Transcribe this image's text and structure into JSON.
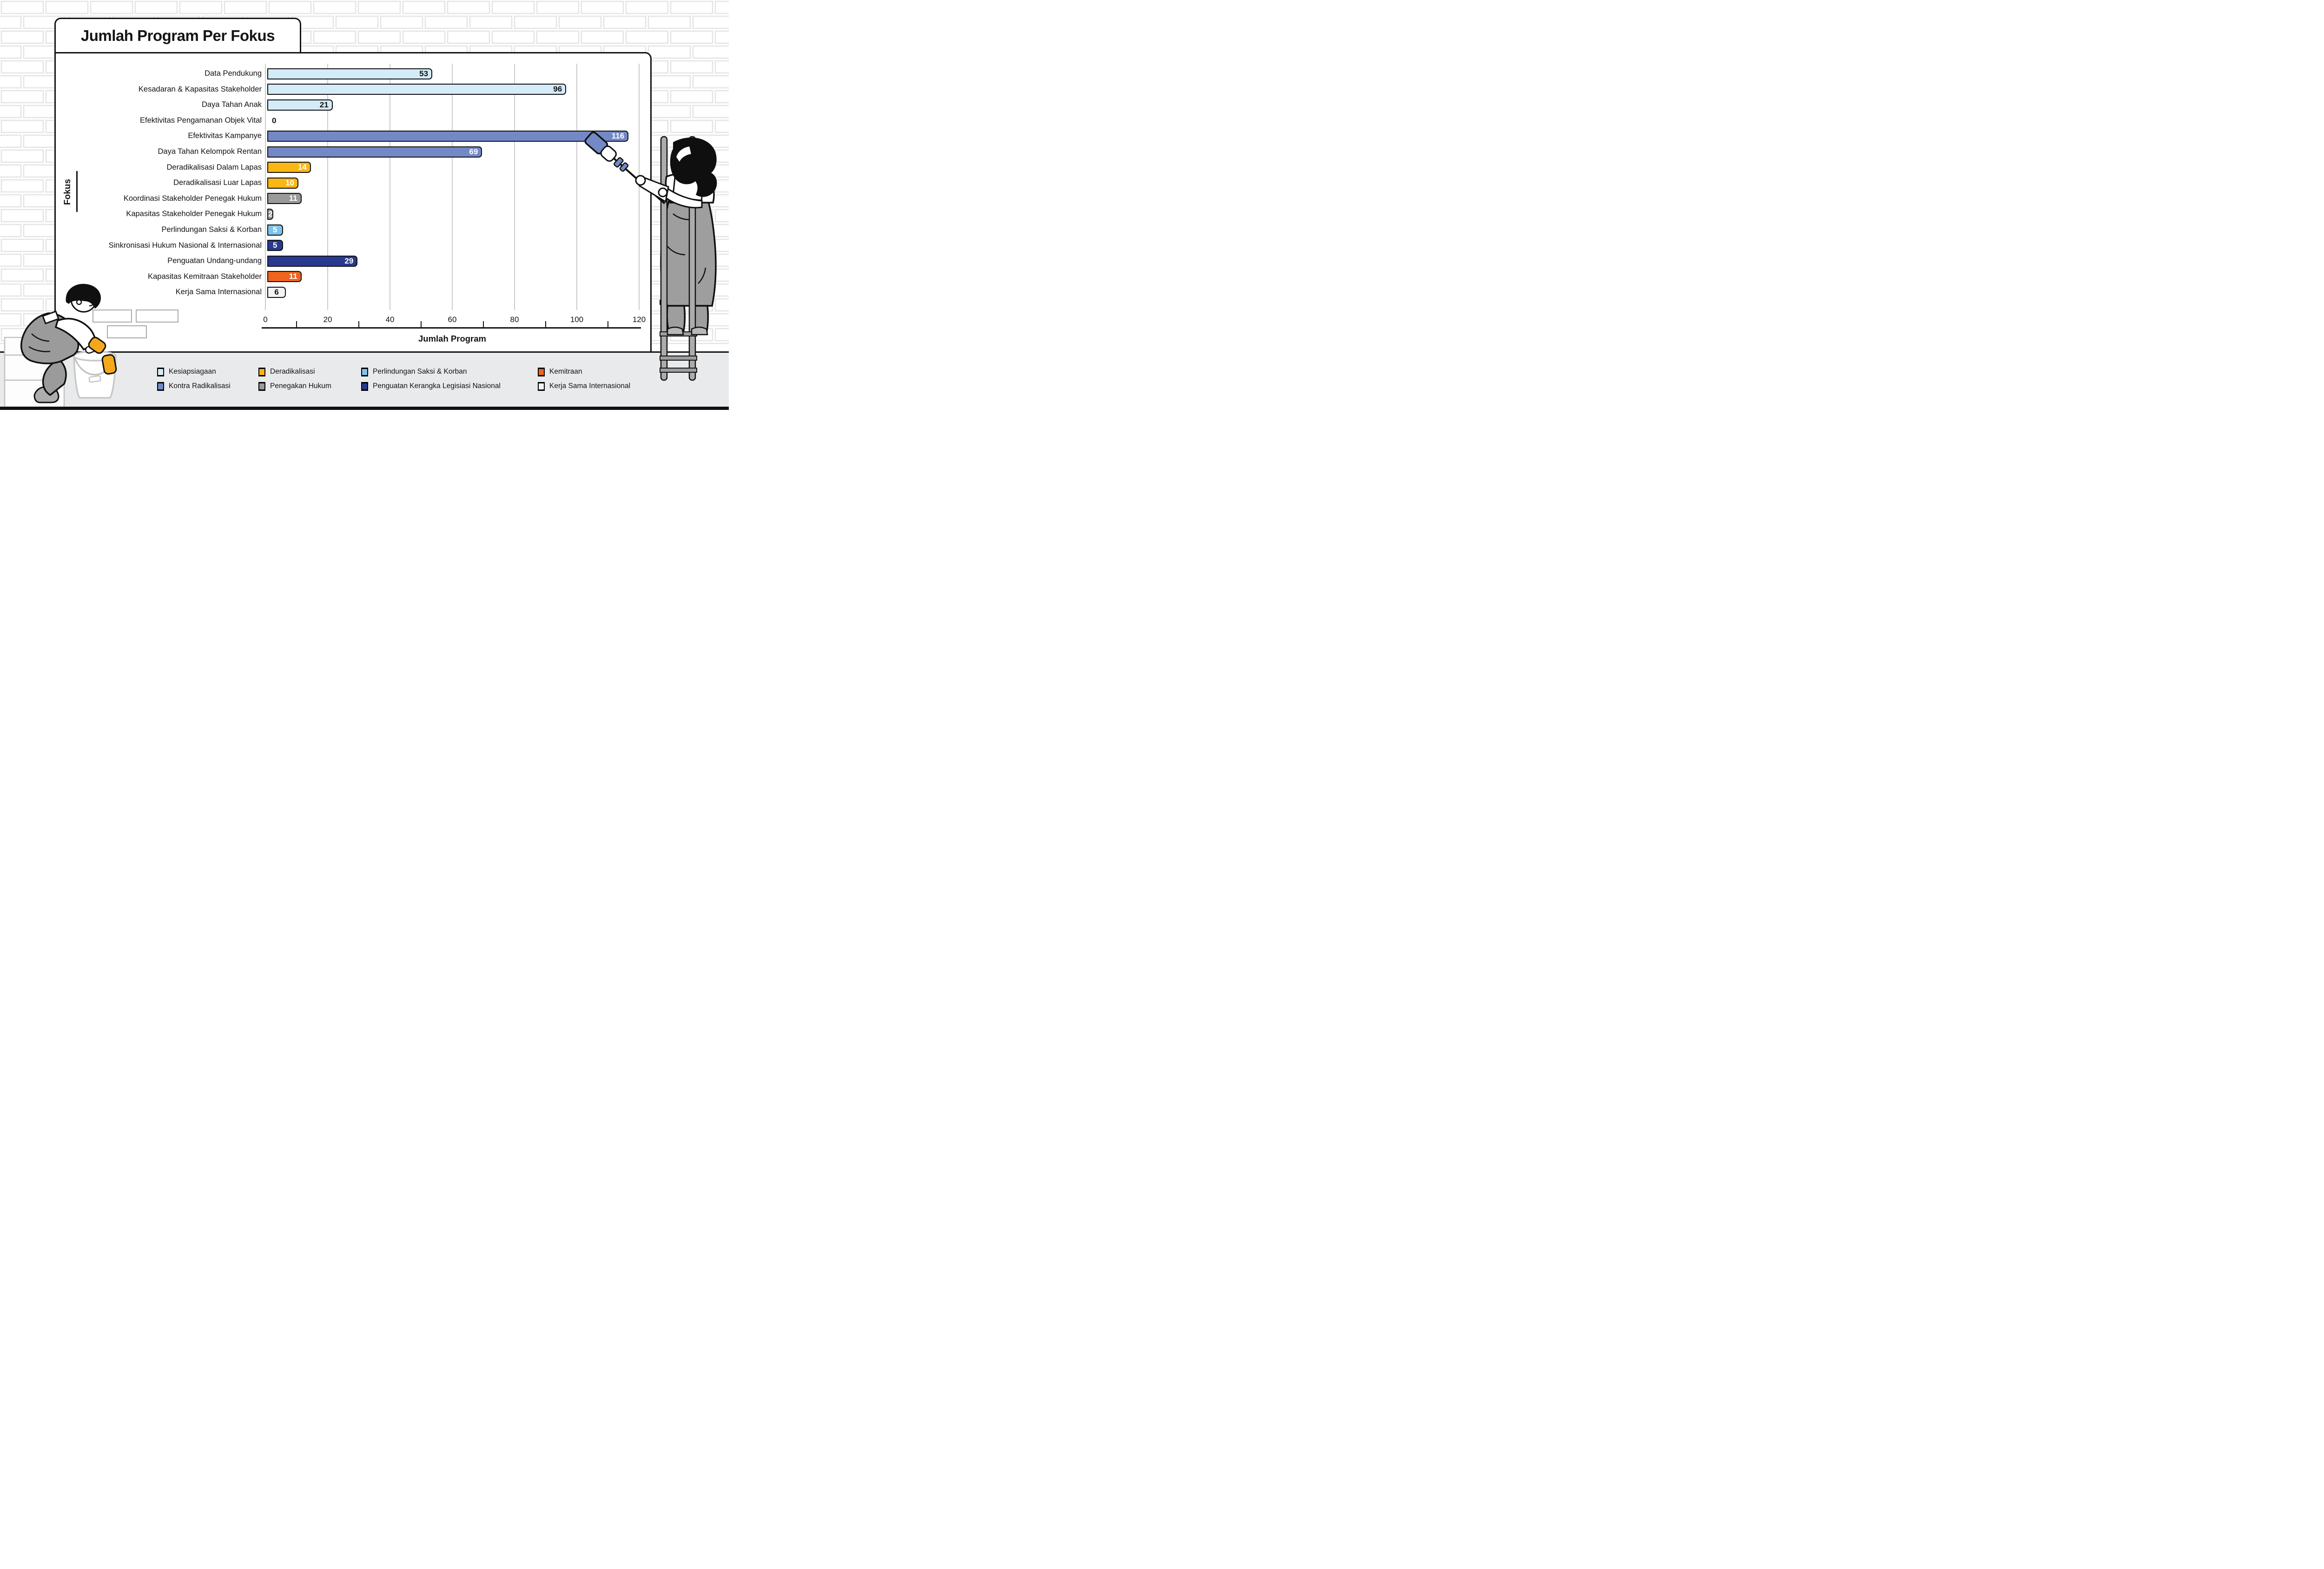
{
  "title": "Jumlah Program Per Fokus",
  "chart_data": {
    "type": "bar",
    "orientation": "horizontal",
    "title": "Jumlah Program Per Fokus",
    "xlabel": "Jumlah Program",
    "ylabel": "Fokus",
    "xlim": [
      0,
      120
    ],
    "xticks": [
      0,
      20,
      40,
      60,
      80,
      100,
      120
    ],
    "minor_xticks": [
      10,
      30,
      50,
      70,
      90,
      110
    ],
    "grid": "vertical gridlines at major ticks",
    "legend_position": "bottom",
    "bars": [
      {
        "label": "Data Pendukung",
        "value": 53,
        "group": "kesiapsiagaan"
      },
      {
        "label": "Kesadaran & Kapasitas Stakeholder",
        "value": 96,
        "group": "kesiapsiagaan"
      },
      {
        "label": "Daya Tahan Anak",
        "value": 21,
        "group": "kesiapsiagaan"
      },
      {
        "label": "Efektivitas Pengamanan Objek Vital",
        "value": 0,
        "group": "kesiapsiagaan"
      },
      {
        "label": "Efektivitas Kampanye",
        "value": 116,
        "group": "kontra_radikalisasi"
      },
      {
        "label": "Daya Tahan Kelompok Rentan",
        "value": 69,
        "group": "kontra_radikalisasi"
      },
      {
        "label": "Deradikalisasi Dalam Lapas",
        "value": 14,
        "group": "deradikalisasi"
      },
      {
        "label": "Deradikalisasi Luar Lapas",
        "value": 10,
        "group": "deradikalisasi"
      },
      {
        "label": "Koordinasi Stakeholder Penegak Hukum",
        "value": 11,
        "group": "penegakan_hukum"
      },
      {
        "label": "Kapasitas Stakeholder Penegak Hukum",
        "value": 2,
        "group": "penegakan_hukum"
      },
      {
        "label": "Perlindungan Saksi & Korban",
        "value": 5,
        "group": "perlindungan_saksi"
      },
      {
        "label": "Sinkronisasi Hukum Nasional & Internasional",
        "value": 5,
        "group": "penguatan_legislasi"
      },
      {
        "label": "Penguatan Undang-undang",
        "value": 29,
        "group": "penguatan_legislasi"
      },
      {
        "label": "Kapasitas Kemitraan Stakeholder",
        "value": 11,
        "group": "kemitraan"
      },
      {
        "label": "Kerja Sama Internasional",
        "value": 6,
        "group": "kerja_sama"
      }
    ],
    "groups": {
      "kesiapsiagaan": {
        "fill": "#D3ECF8",
        "text": "#121212"
      },
      "kontra_radikalisasi": {
        "fill": "#7289C6",
        "text": "#ffffff"
      },
      "deradikalisasi": {
        "fill": "#FBB615",
        "text": "#ffffff"
      },
      "penegakan_hukum": {
        "fill": "#999999",
        "text": "#ffffff"
      },
      "perlindungan_saksi": {
        "fill": "#7EC3EA",
        "text": "#ffffff"
      },
      "penguatan_legislasi": {
        "fill": "#28398F",
        "text": "#ffffff"
      },
      "kemitraan": {
        "fill": "#F0641F",
        "text": "#ffffff"
      },
      "kerja_sama": {
        "fill": "#F4F4F4",
        "text": "#121212"
      }
    },
    "legend": [
      {
        "label": "Kesiapsiagaan",
        "group": "kesiapsiagaan",
        "row": 0,
        "col": 0
      },
      {
        "label": "Deradikalisasi",
        "group": "deradikalisasi",
        "row": 0,
        "col": 1
      },
      {
        "label": "Perlindungan Saksi & Korban",
        "group": "perlindungan_saksi",
        "row": 0,
        "col": 2
      },
      {
        "label": "Kemitraan",
        "group": "kemitraan",
        "row": 0,
        "col": 3
      },
      {
        "label": "Kontra Radikalisasi",
        "group": "kontra_radikalisasi",
        "row": 1,
        "col": 0
      },
      {
        "label": "Penegakan Hukum",
        "group": "penegakan_hukum",
        "row": 1,
        "col": 1
      },
      {
        "label": "Penguatan Kerangka Legisiasi Nasional",
        "group": "penguatan_legislasi",
        "row": 1,
        "col": 2
      },
      {
        "label": "Kerja Sama Internasional",
        "group": "kerja_sama",
        "row": 1,
        "col": 3
      }
    ]
  },
  "decorations": {
    "background": "white brick wall with light gray mortar lines and gray floor",
    "bricklayer_illustration": "worker in gray overalls with yellow gloves sitting on white blocks beside a paint bucket laying bricks",
    "painter_illustration": "worker in gray overalls on a ladder painting with a blue paint roller",
    "roller_paint_color": "#7289C6"
  }
}
